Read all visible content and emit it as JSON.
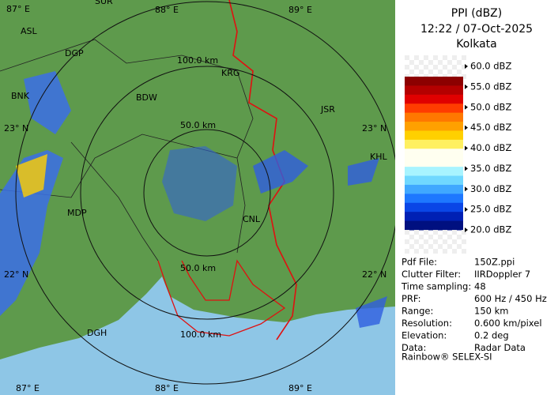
{
  "header": {
    "title": "PPI (dBZ)",
    "time": "12:22 / 07-Oct-2025",
    "station": "Kolkata"
  },
  "legend": {
    "labels": [
      "60.0 dBZ",
      "55.0 dBZ",
      "50.0 dBZ",
      "45.0 dBZ",
      "40.0 dBZ",
      "35.0 dBZ",
      "30.0 dBZ",
      "25.0 dBZ",
      "20.0 dBZ"
    ],
    "colors": [
      "#8c0000",
      "#b40000",
      "#e00000",
      "#ff3c00",
      "#ff7800",
      "#ffa000",
      "#ffd000",
      "#fff060",
      "#fffff0",
      "#fffff0",
      "#a8f4ff",
      "#70d8ff",
      "#40a8ff",
      "#1e78ff",
      "#0a46e6",
      "#0020b4",
      "#001080"
    ]
  },
  "info": {
    "rows": [
      [
        "Pdf File:",
        "150Z.ppi"
      ],
      [
        "Clutter Filter:",
        "IIRDoppler 7"
      ],
      [
        "Time sampling:",
        "48"
      ],
      [
        "PRF:",
        "600 Hz / 450 Hz"
      ],
      [
        "Range:",
        "150 km"
      ],
      [
        "Resolution:",
        "0.600 km/pixel"
      ],
      [
        "Elevation:",
        "0.2 deg"
      ],
      [
        "Data:",
        "Radar Data"
      ]
    ],
    "footer": "Rainbow® SELEX-SI"
  },
  "map": {
    "grid_labels": [
      "87° E",
      "88° E",
      "89° E",
      "23° N",
      "23° N",
      "22° N",
      "22° N",
      "87° E",
      "88° E",
      "89° E"
    ],
    "range_labels": [
      "100.0 km",
      "50.0 km",
      "50.0 km",
      "100.0 km"
    ],
    "cities": [
      "SUR",
      "ASL",
      "DGP",
      "BNK",
      "BDW",
      "KRG",
      "JSR",
      "KHL",
      "MDP",
      "CNL",
      "DGH"
    ]
  }
}
